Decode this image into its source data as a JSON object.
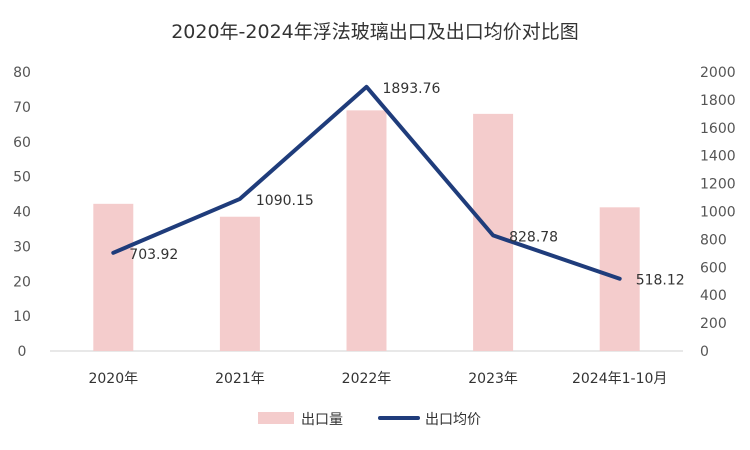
{
  "chart_data": {
    "type": "bar+line",
    "title": "2020年-2024年浮法玻璃出口及出口均价对比图",
    "categories": [
      "2020年",
      "2021年",
      "2022年",
      "2023年",
      "2024年1-10月"
    ],
    "series": [
      {
        "name": "出口量",
        "type": "bar",
        "axis": "left",
        "color": "#F4CCCC",
        "values": [
          42.2,
          38.5,
          69.0,
          68.0,
          41.2
        ]
      },
      {
        "name": "出口均价",
        "type": "line",
        "axis": "right",
        "color": "#1F3C7B",
        "values": [
          703.92,
          1090.15,
          1893.76,
          828.78,
          518.12
        ],
        "data_labels": [
          "703.92",
          "1090.15",
          "1893.76",
          "828.78",
          "518.12"
        ]
      }
    ],
    "y_left": {
      "ylim": [
        0,
        80
      ],
      "ticks": [
        "0",
        "10",
        "20",
        "30",
        "40",
        "50",
        "60",
        "70",
        "80"
      ]
    },
    "y_right": {
      "ylim": [
        0,
        2000
      ],
      "ticks": [
        "0",
        "200",
        "400",
        "600",
        "800",
        "1000",
        "1200",
        "1400",
        "1600",
        "1800",
        "2000"
      ]
    },
    "grid": false,
    "legend": "bottom"
  }
}
